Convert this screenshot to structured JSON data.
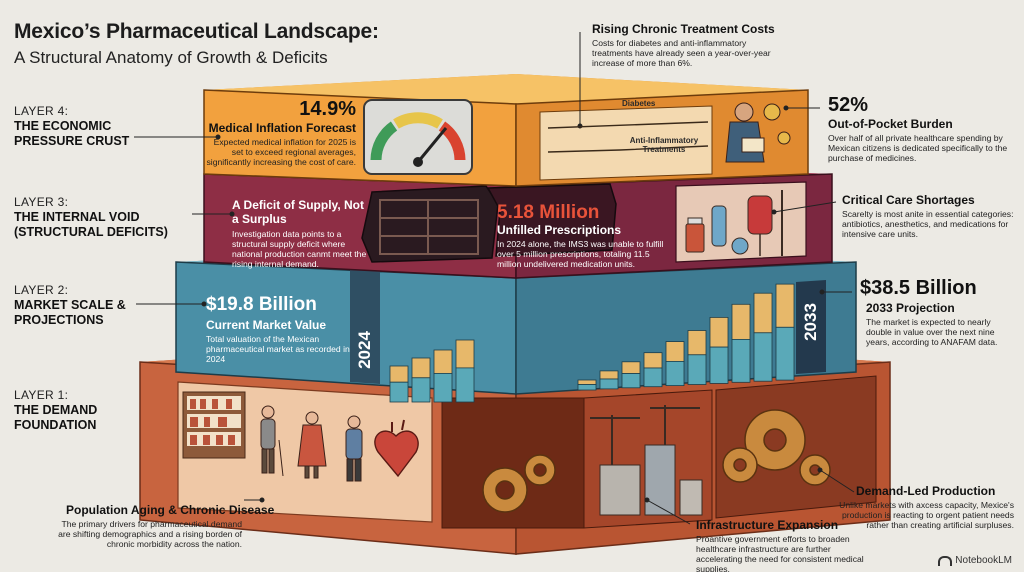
{
  "header": {
    "title": "Mexico’s Pharmaceutical Landscape:",
    "subtitle": "A Structural Anatomy of Growth & Deficits"
  },
  "layers": [
    {
      "number": "LAYER 4:",
      "name": "THE ECONOMIC PRESSURE CRUST"
    },
    {
      "number": "LAYER 3:",
      "name": "THE INTERNAL VOID (STRUCTURAL DEFICITS)"
    },
    {
      "number": "LAYER 2:",
      "name": "MARKET SCALE & PROJECTIONS"
    },
    {
      "number": "LAYER 1:",
      "name": "THE DEMAND FOUNDATION"
    }
  ],
  "rising_costs": {
    "heading": "Rising Chronic Treatment Costs",
    "body": "Costs for diabetes and anti-inflammatory treatments have already seen a year-over-year increase of more than 6%.",
    "line_labels": [
      "Diabetes",
      "Anti-Inflammatory Treatments"
    ]
  },
  "inflation": {
    "value": "14.9%",
    "heading": "Medical Inflation Forecast",
    "body": "Expected medical inflation for 2025 is set to exceed regional averages, significantly increasing the cost of care."
  },
  "out_of_pocket": {
    "value": "52%",
    "heading": "Out-of-Pocket Burden",
    "body": "Over half of all private healthcare spending by Mexican citizens is dedicated specifically to the purchase of medicines."
  },
  "supply_deficit": {
    "heading": "A Deficit of Supply, Not a Surplus",
    "body": "Investigation data points to a structural supply deficit where national production canmt meet the rising internal demand."
  },
  "unfilled": {
    "value": "5.18 Million",
    "heading": "Unfilled Prescriptions",
    "body": "In 2024 alone, the IMS3 was unable to fulfill over 5 million prescriptions, totaling 11.5 million undelivered medication units."
  },
  "critical_care": {
    "heading": "Critical Care Shortages",
    "body": "Scarelty is most anite in essential categories: antibiotics, anesthetics, and medications for intensive care units."
  },
  "current_market": {
    "value": "$19.8 Billion",
    "heading": "Current Market Value",
    "body": "Total valuation of the Mexican pharmaceutical market as recorded in 2024",
    "year": "2024"
  },
  "projection": {
    "value": "$38.5 Billion",
    "heading": "2033 Projection",
    "body": "The market is expected to nearly double in value over the next nine years, according to ANAFAM data.",
    "year": "2033"
  },
  "aging": {
    "heading": "Population Aging & Chronic Disease",
    "body": "The primary drivers for pharmaceutical demand are shifting demographics and a rising borden of chronic morbidity across the nation."
  },
  "infrastructure": {
    "heading": "Infrastructure Expansion",
    "body": "Proantive government efforts to broaden healthcare infrastructure are further accelerating the need for consistent medical supplies."
  },
  "demand_led": {
    "heading": "Demand-Led Production",
    "body": "Unlike markets with axcess capacity, Mexice's production is reacting to orgent patient needs rather than creating artificial surpluses."
  },
  "brand": "NotebookLM",
  "colors": {
    "crust": "#f2a13e",
    "void": "#8e2e45",
    "scale": "#4a8fa6",
    "foundation": "#c8643f",
    "gauge_red": "#d9432f",
    "gauge_yellow": "#e7c54a",
    "gauge_green": "#3f9b58"
  }
}
